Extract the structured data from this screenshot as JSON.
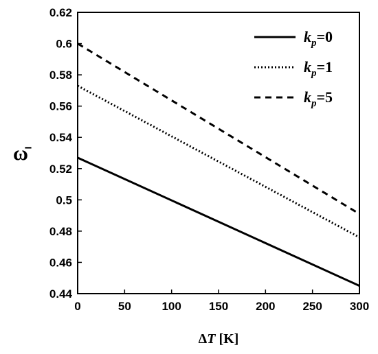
{
  "chart_data": {
    "type": "line",
    "title": "",
    "xlabel": {
      "delta": "Δ",
      "var": "T",
      "unit": " [K]"
    },
    "ylabel": "ω̄",
    "xlim": [
      0,
      300
    ],
    "ylim": [
      0.44,
      0.62
    ],
    "xticks": [
      "0",
      "50",
      "100",
      "150",
      "200",
      "250",
      "300"
    ],
    "yticks": [
      "0.44",
      "0.46",
      "0.48",
      "0.5",
      "0.52",
      "0.54",
      "0.56",
      "0.58",
      "0.6",
      "0.62"
    ],
    "grid": false,
    "legend_position": "top-right",
    "series": [
      {
        "name": "kp=0",
        "label_var": "k",
        "label_sub": "p",
        "label_val": "=0",
        "style": "solid",
        "x": [
          0,
          300
        ],
        "y": [
          0.527,
          0.445
        ]
      },
      {
        "name": "kp=1",
        "label_var": "k",
        "label_sub": "p",
        "label_val": "=1",
        "style": "dotted",
        "x": [
          0,
          300
        ],
        "y": [
          0.573,
          0.476
        ]
      },
      {
        "name": "kp=5",
        "label_var": "k",
        "label_sub": "p",
        "label_val": "=5",
        "style": "dashed",
        "x": [
          0,
          300
        ],
        "y": [
          0.6,
          0.491
        ]
      }
    ]
  }
}
